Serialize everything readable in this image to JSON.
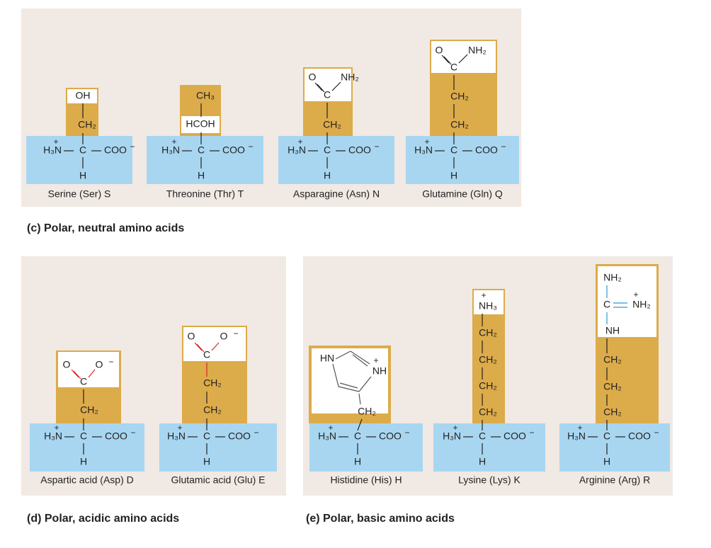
{
  "panels": [
    {
      "caption": "(c)  Polar, neutral amino acids",
      "molecules": [
        {
          "name": "Serine (Ser) S",
          "backbone": [
            "H₃N",
            "+",
            "C",
            "COO",
            "−",
            "H"
          ],
          "side_chain": [
            "CH₂",
            "OH"
          ]
        },
        {
          "name": "Threonine (Thr) T",
          "backbone": [
            "H₃N",
            "+",
            "C",
            "COO",
            "−",
            "H"
          ],
          "side_chain": [
            "HCOH",
            "CH₃"
          ]
        },
        {
          "name": "Asparagine (Asn) N",
          "backbone": [
            "H₃N",
            "+",
            "C",
            "COO",
            "−",
            "H"
          ],
          "side_chain": [
            "CH₂",
            "C",
            "O",
            "NH₂"
          ]
        },
        {
          "name": "Glutamine (Gln) Q",
          "backbone": [
            "H₃N",
            "+",
            "C",
            "COO",
            "−",
            "H"
          ],
          "side_chain": [
            "CH₂",
            "CH₂",
            "C",
            "O",
            "NH₂"
          ]
        }
      ]
    },
    {
      "caption": "(d)  Polar, acidic amino acids",
      "molecules": [
        {
          "name": "Aspartic acid (Asp) D",
          "backbone": [
            "H₃N",
            "+",
            "C",
            "COO",
            "−",
            "H"
          ],
          "side_chain": [
            "CH₂",
            "C",
            "O",
            "O",
            "−"
          ]
        },
        {
          "name": "Glutamic acid (Glu) E",
          "backbone": [
            "H₃N",
            "+",
            "C",
            "COO",
            "−",
            "H"
          ],
          "side_chain": [
            "CH₂",
            "CH₂",
            "C",
            "O",
            "O",
            "−"
          ]
        }
      ]
    },
    {
      "caption": "(e)  Polar, basic amino acids",
      "molecules": [
        {
          "name": "Histidine (His) H",
          "backbone": [
            "H₃N",
            "+",
            "C",
            "COO",
            "−",
            "H"
          ],
          "side_chain": [
            "CH₂",
            "HN",
            "NH",
            "+"
          ]
        },
        {
          "name": "Lysine (Lys) K",
          "backbone": [
            "H₃N",
            "+",
            "C",
            "COO",
            "−",
            "H"
          ],
          "side_chain": [
            "CH₂",
            "CH₂",
            "CH₂",
            "CH₂",
            "NH₃",
            "+"
          ]
        },
        {
          "name": "Arginine (Arg) R",
          "backbone": [
            "H₃N",
            "+",
            "C",
            "COO",
            "−",
            "H"
          ],
          "side_chain": [
            "CH₂",
            "CH₂",
            "CH₂",
            "NH",
            "C",
            "NH₂",
            "+",
            "NH₂"
          ]
        }
      ]
    }
  ]
}
